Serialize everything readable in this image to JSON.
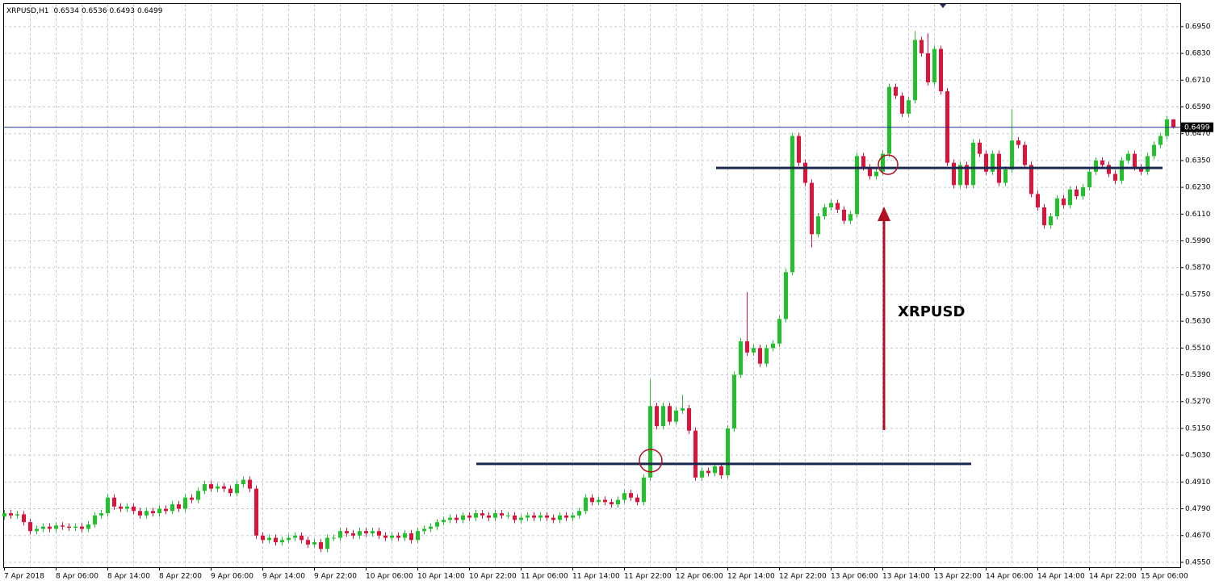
{
  "chart_data": {
    "type": "candlestick",
    "symbol": "XRPUSD,H1",
    "annotation": "XRPUSD",
    "up_color": "#22c02a",
    "down_color": "#dc143c",
    "grid": true,
    "ylim": [
      0.4528,
      0.7051
    ],
    "yticks": [
      {
        "value": 0.455,
        "label": "0.4550"
      },
      {
        "value": 0.467,
        "label": "0.4670"
      },
      {
        "value": 0.479,
        "label": "0.4790"
      },
      {
        "value": 0.491,
        "label": "0.4910"
      },
      {
        "value": 0.503,
        "label": "0.5030"
      },
      {
        "value": 0.515,
        "label": "0.5150"
      },
      {
        "value": 0.527,
        "label": "0.5270"
      },
      {
        "value": 0.539,
        "label": "0.5390"
      },
      {
        "value": 0.551,
        "label": "0.5510"
      },
      {
        "value": 0.563,
        "label": "0.5630"
      },
      {
        "value": 0.575,
        "label": "0.5750"
      },
      {
        "value": 0.587,
        "label": "0.5870"
      },
      {
        "value": 0.599,
        "label": "0.5990"
      },
      {
        "value": 0.611,
        "label": "0.6110"
      },
      {
        "value": 0.623,
        "label": "0.6230"
      },
      {
        "value": 0.635,
        "label": "0.6350"
      },
      {
        "value": 0.647,
        "label": "0.6470"
      },
      {
        "value": 0.659,
        "label": "0.6590"
      },
      {
        "value": 0.671,
        "label": "0.6710"
      },
      {
        "value": 0.683,
        "label": "0.6830"
      },
      {
        "value": 0.695,
        "label": "0.6950"
      }
    ],
    "levels": [
      0.4991,
      0.6317
    ],
    "categories": [
      "7 Apr 2018",
      null,
      null,
      null,
      null,
      null,
      null,
      null,
      "8 Apr 06:00",
      null,
      null,
      null,
      null,
      null,
      null,
      null,
      "8 Apr 14:00",
      null,
      null,
      null,
      null,
      null,
      null,
      null,
      "8 Apr 22:00",
      null,
      null,
      null,
      null,
      null,
      null,
      null,
      "9 Apr 06:00",
      null,
      null,
      null,
      null,
      null,
      null,
      null,
      "9 Apr 14:00",
      null,
      null,
      null,
      null,
      null,
      null,
      null,
      "9 Apr 22:00",
      null,
      null,
      null,
      null,
      null,
      null,
      null,
      "10 Apr 06:00",
      null,
      null,
      null,
      null,
      null,
      null,
      null,
      "10 Apr 14:00",
      null,
      null,
      null,
      null,
      null,
      null,
      null,
      "10 Apr 22:00",
      null,
      null,
      null,
      null,
      null,
      null,
      null,
      "11 Apr 06:00",
      null,
      null,
      null,
      null,
      null,
      null,
      null,
      "11 Apr 14:00",
      null,
      null,
      null,
      null,
      null,
      null,
      null,
      "11 Apr 22:00",
      null,
      null,
      null,
      null,
      null,
      null,
      null,
      "12 Apr 06:00",
      null,
      null,
      null,
      null,
      null,
      null,
      null,
      "12 Apr 14:00",
      null,
      null,
      null,
      null,
      null,
      null,
      null,
      "12 Apr 22:00",
      null,
      null,
      null,
      null,
      null,
      null,
      null,
      "13 Apr 06:00",
      null,
      null,
      null,
      null,
      null,
      null,
      null,
      "13 Apr 14:00",
      null,
      null,
      null,
      null,
      null,
      null,
      null,
      "13 Apr 22:00",
      null,
      null,
      null,
      null,
      null,
      null,
      null,
      "14 Apr 06:00",
      null,
      null,
      null,
      null,
      null,
      null,
      null,
      "14 Apr 14:00",
      null,
      null,
      null,
      null,
      null,
      null,
      null,
      "14 Apr 22:00",
      null,
      null,
      null,
      null,
      null,
      null,
      null,
      "15 Apr 06:00",
      null,
      null,
      null,
      null,
      null
    ],
    "open": [
      0.4755,
      0.477,
      0.476,
      0.4765,
      0.473,
      0.469,
      0.47,
      0.471,
      0.47,
      0.4715,
      0.471,
      0.4705,
      0.471,
      0.47,
      0.472,
      0.476,
      0.477,
      0.484,
      0.48,
      0.479,
      0.48,
      0.478,
      0.476,
      0.478,
      0.477,
      0.479,
      0.478,
      0.481,
      0.479,
      0.484,
      0.483,
      0.487,
      0.49,
      0.488,
      0.489,
      0.488,
      0.486,
      0.49,
      0.492,
      0.488,
      0.467,
      0.465,
      0.466,
      0.464,
      0.465,
      0.466,
      0.467,
      0.465,
      0.463,
      0.464,
      0.461,
      0.466,
      0.466,
      0.469,
      0.468,
      0.467,
      0.469,
      0.468,
      0.469,
      0.467,
      0.466,
      0.467,
      0.466,
      0.468,
      0.465,
      0.469,
      0.47,
      0.471,
      0.473,
      0.474,
      0.475,
      0.474,
      0.476,
      0.475,
      0.477,
      0.476,
      0.475,
      0.477,
      0.476,
      0.476,
      0.474,
      0.475,
      0.476,
      0.475,
      0.476,
      0.475,
      0.474,
      0.476,
      0.475,
      0.476,
      0.478,
      0.484,
      0.482,
      0.483,
      0.482,
      0.481,
      0.483,
      0.486,
      0.484,
      0.482,
      0.493,
      0.525,
      0.516,
      0.525,
      0.518,
      0.523,
      0.524,
      0.514,
      0.493,
      0.496,
      0.495,
      0.498,
      0.494,
      0.515,
      0.539,
      0.554,
      0.549,
      0.551,
      0.544,
      0.551,
      0.553,
      0.564,
      0.585,
      0.646,
      0.634,
      0.625,
      0.602,
      0.61,
      0.614,
      0.616,
      0.613,
      0.608,
      0.611,
      0.637,
      0.632,
      0.628,
      0.63,
      0.638,
      0.668,
      0.664,
      0.656,
      0.662,
      0.689,
      0.683,
      0.67,
      0.685,
      0.666,
      0.634,
      0.624,
      0.633,
      0.624,
      0.643,
      0.638,
      0.63,
      0.638,
      0.625,
      0.631,
      0.644,
      0.642,
      0.633,
      0.62,
      0.614,
      0.606,
      0.61,
      0.618,
      0.615,
      0.622,
      0.619,
      0.623,
      0.63,
      0.635,
      0.633,
      0.629,
      0.626,
      0.635,
      0.638,
      0.632,
      0.63,
      0.637,
      0.642,
      0.646,
      0.6534
    ],
    "high": [
      0.4785,
      0.4785,
      0.478,
      0.478,
      0.4745,
      0.4715,
      0.4725,
      0.4725,
      0.473,
      0.473,
      0.4725,
      0.4725,
      0.4725,
      0.4735,
      0.4775,
      0.4785,
      0.4855,
      0.4855,
      0.4815,
      0.4815,
      0.4815,
      0.4795,
      0.4795,
      0.4795,
      0.4805,
      0.4805,
      0.4825,
      0.4825,
      0.4855,
      0.4855,
      0.4885,
      0.4915,
      0.4915,
      0.4905,
      0.4905,
      0.4895,
      0.4915,
      0.4935,
      0.4935,
      0.4895,
      0.4685,
      0.4675,
      0.4675,
      0.4665,
      0.4675,
      0.4685,
      0.4685,
      0.4665,
      0.4655,
      0.4655,
      0.4675,
      0.4675,
      0.4705,
      0.4705,
      0.4695,
      0.4705,
      0.4705,
      0.4705,
      0.4705,
      0.4685,
      0.4685,
      0.4685,
      0.4695,
      0.4695,
      0.4705,
      0.4715,
      0.4725,
      0.4745,
      0.4755,
      0.4765,
      0.4765,
      0.4775,
      0.4775,
      0.4785,
      0.4785,
      0.4775,
      0.4785,
      0.4785,
      0.4775,
      0.4775,
      0.4765,
      0.4775,
      0.4775,
      0.4775,
      0.4775,
      0.4765,
      0.4775,
      0.4775,
      0.4775,
      0.4795,
      0.4855,
      0.4855,
      0.4845,
      0.4845,
      0.4835,
      0.4845,
      0.4875,
      0.4875,
      0.4855,
      0.4945,
      0.537,
      0.5265,
      0.5265,
      0.5265,
      0.5245,
      0.53,
      0.5255,
      0.5155,
      0.4975,
      0.4975,
      0.4995,
      0.4995,
      0.5165,
      0.5405,
      0.5555,
      0.576,
      0.5525,
      0.5525,
      0.5525,
      0.5545,
      0.5655,
      0.5865,
      0.6475,
      0.6475,
      0.6355,
      0.6265,
      0.6115,
      0.6155,
      0.6175,
      0.6175,
      0.6145,
      0.6125,
      0.6385,
      0.6385,
      0.6335,
      0.6315,
      0.6395,
      0.6695,
      0.6695,
      0.6655,
      0.6635,
      0.693,
      0.6905,
      0.692,
      0.6865,
      0.6865,
      0.6675,
      0.6355,
      0.6345,
      0.6345,
      0.6445,
      0.6445,
      0.6395,
      0.6395,
      0.6395,
      0.6325,
      0.658,
      0.6455,
      0.6435,
      0.6345,
      0.6215,
      0.6155,
      0.6115,
      0.6195,
      0.6195,
      0.6235,
      0.6235,
      0.6245,
      0.6315,
      0.6365,
      0.6365,
      0.6345,
      0.6305,
      0.6365,
      0.6395,
      0.6395,
      0.6335,
      0.6385,
      0.6435,
      0.6475,
      0.6549,
      0.6536
    ],
    "low": [
      0.474,
      0.4745,
      0.4745,
      0.4715,
      0.4675,
      0.4675,
      0.4685,
      0.4685,
      0.4685,
      0.4695,
      0.469,
      0.469,
      0.4685,
      0.4685,
      0.4705,
      0.4745,
      0.4755,
      0.4785,
      0.4775,
      0.4775,
      0.4765,
      0.4745,
      0.4745,
      0.4755,
      0.4755,
      0.4765,
      0.4765,
      0.4775,
      0.4775,
      0.4815,
      0.4815,
      0.4855,
      0.4865,
      0.4865,
      0.4865,
      0.4845,
      0.4845,
      0.4885,
      0.4865,
      0.4655,
      0.4635,
      0.4635,
      0.4625,
      0.4625,
      0.4635,
      0.4645,
      0.4635,
      0.4615,
      0.4615,
      0.4595,
      0.4595,
      0.4645,
      0.4645,
      0.4665,
      0.4655,
      0.4655,
      0.4665,
      0.4665,
      0.4655,
      0.4645,
      0.4645,
      0.4645,
      0.4645,
      0.4635,
      0.4635,
      0.4675,
      0.4685,
      0.4695,
      0.4715,
      0.4725,
      0.4725,
      0.4725,
      0.4735,
      0.4735,
      0.4745,
      0.4735,
      0.4735,
      0.4745,
      0.4745,
      0.4725,
      0.4725,
      0.4735,
      0.4735,
      0.4735,
      0.4735,
      0.4725,
      0.4725,
      0.4735,
      0.4735,
      0.4745,
      0.4765,
      0.4805,
      0.4805,
      0.4805,
      0.4795,
      0.4795,
      0.4815,
      0.4825,
      0.4805,
      0.4805,
      0.4915,
      0.5145,
      0.5145,
      0.5165,
      0.5165,
      0.5215,
      0.5125,
      0.4915,
      0.4915,
      0.4935,
      0.4935,
      0.4925,
      0.4925,
      0.5135,
      0.5375,
      0.5475,
      0.5475,
      0.5425,
      0.5425,
      0.5495,
      0.5515,
      0.5625,
      0.5835,
      0.6325,
      0.6235,
      0.596,
      0.6005,
      0.6085,
      0.6125,
      0.6115,
      0.6065,
      0.6065,
      0.6095,
      0.6305,
      0.6265,
      0.6265,
      0.6285,
      0.6365,
      0.6625,
      0.6545,
      0.6545,
      0.6605,
      0.6815,
      0.6685,
      0.6685,
      0.6645,
      0.6325,
      0.6225,
      0.6225,
      0.6225,
      0.6225,
      0.6365,
      0.6285,
      0.6285,
      0.6235,
      0.6235,
      0.6295,
      0.6405,
      0.6315,
      0.6185,
      0.6125,
      0.6045,
      0.6045,
      0.6085,
      0.6135,
      0.6135,
      0.6175,
      0.6175,
      0.6215,
      0.6285,
      0.6315,
      0.6275,
      0.6245,
      0.6245,
      0.6335,
      0.6305,
      0.6285,
      0.6285,
      0.6355,
      0.6405,
      0.6445,
      0.6493
    ],
    "close": [
      0.477,
      0.476,
      0.4765,
      0.473,
      0.469,
      0.47,
      0.471,
      0.47,
      0.4715,
      0.471,
      0.4705,
      0.471,
      0.47,
      0.472,
      0.476,
      0.477,
      0.484,
      0.48,
      0.479,
      0.48,
      0.478,
      0.476,
      0.478,
      0.477,
      0.479,
      0.478,
      0.481,
      0.479,
      0.484,
      0.483,
      0.487,
      0.49,
      0.488,
      0.489,
      0.488,
      0.486,
      0.49,
      0.492,
      0.488,
      0.467,
      0.465,
      0.466,
      0.464,
      0.465,
      0.466,
      0.467,
      0.465,
      0.463,
      0.464,
      0.461,
      0.466,
      0.466,
      0.469,
      0.468,
      0.467,
      0.469,
      0.468,
      0.469,
      0.467,
      0.466,
      0.467,
      0.466,
      0.468,
      0.465,
      0.469,
      0.47,
      0.471,
      0.473,
      0.474,
      0.475,
      0.474,
      0.476,
      0.475,
      0.477,
      0.476,
      0.475,
      0.477,
      0.476,
      0.476,
      0.474,
      0.475,
      0.476,
      0.475,
      0.476,
      0.475,
      0.474,
      0.476,
      0.475,
      0.476,
      0.478,
      0.484,
      0.482,
      0.483,
      0.482,
      0.481,
      0.483,
      0.486,
      0.484,
      0.482,
      0.493,
      0.525,
      0.516,
      0.525,
      0.518,
      0.523,
      0.524,
      0.514,
      0.493,
      0.496,
      0.495,
      0.498,
      0.494,
      0.515,
      0.539,
      0.554,
      0.549,
      0.551,
      0.544,
      0.551,
      0.553,
      0.564,
      0.585,
      0.646,
      0.634,
      0.625,
      0.602,
      0.61,
      0.614,
      0.616,
      0.613,
      0.608,
      0.611,
      0.637,
      0.632,
      0.628,
      0.63,
      0.638,
      0.668,
      0.664,
      0.656,
      0.662,
      0.689,
      0.683,
      0.67,
      0.685,
      0.666,
      0.634,
      0.624,
      0.633,
      0.624,
      0.643,
      0.638,
      0.63,
      0.638,
      0.625,
      0.631,
      0.644,
      0.642,
      0.633,
      0.62,
      0.614,
      0.606,
      0.61,
      0.618,
      0.615,
      0.622,
      0.619,
      0.623,
      0.63,
      0.635,
      0.633,
      0.629,
      0.626,
      0.635,
      0.638,
      0.632,
      0.63,
      0.637,
      0.642,
      0.646,
      0.6534,
      0.6499
    ]
  }
}
